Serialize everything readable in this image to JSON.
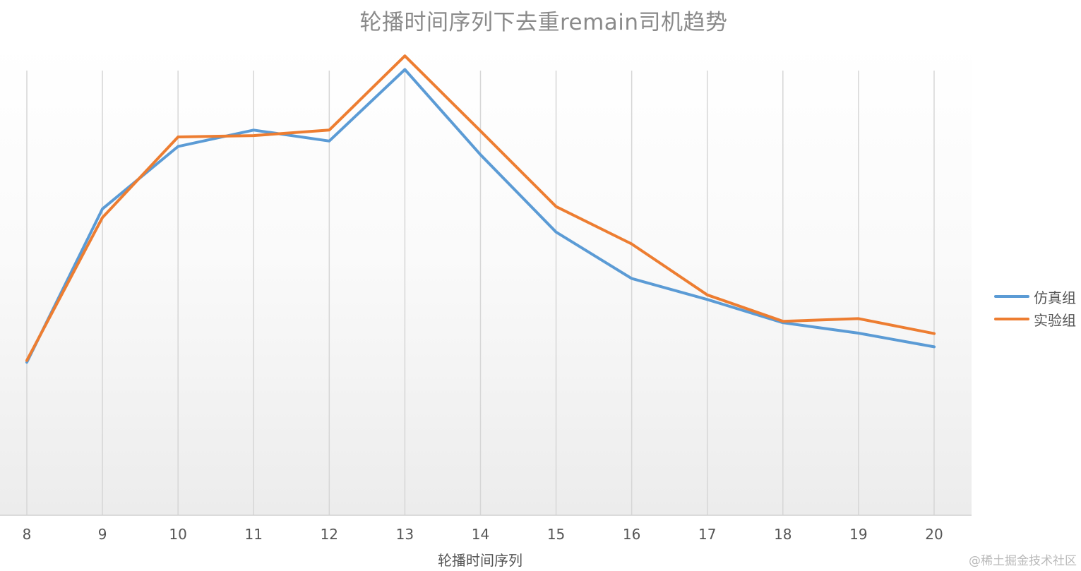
{
  "chart_data": {
    "type": "line",
    "title": "轮播时间序列下去重remain司机趋势",
    "xlabel": "轮播时间序列",
    "ylabel": "",
    "categories": [
      "8",
      "9",
      "10",
      "11",
      "12",
      "13",
      "14",
      "15",
      "16",
      "17",
      "18",
      "19",
      "20"
    ],
    "ylim": [
      0,
      100
    ],
    "grid": "vertical",
    "legend_position": "right",
    "y_axis_visible": false,
    "series": [
      {
        "name": "仿真组",
        "color": "#5b9bd5",
        "values": [
          33.6,
          67.3,
          81.0,
          84.6,
          82.2,
          97.9,
          79.2,
          62.2,
          52.0,
          47.4,
          42.3,
          40.0,
          37.0
        ]
      },
      {
        "name": "实验组",
        "color": "#ed7d31",
        "values": [
          34.0,
          65.4,
          83.1,
          83.4,
          84.6,
          100.9,
          84.4,
          67.8,
          59.6,
          48.4,
          42.6,
          43.2,
          39.9
        ]
      }
    ]
  },
  "watermark": "@稀土掘金技术社区"
}
